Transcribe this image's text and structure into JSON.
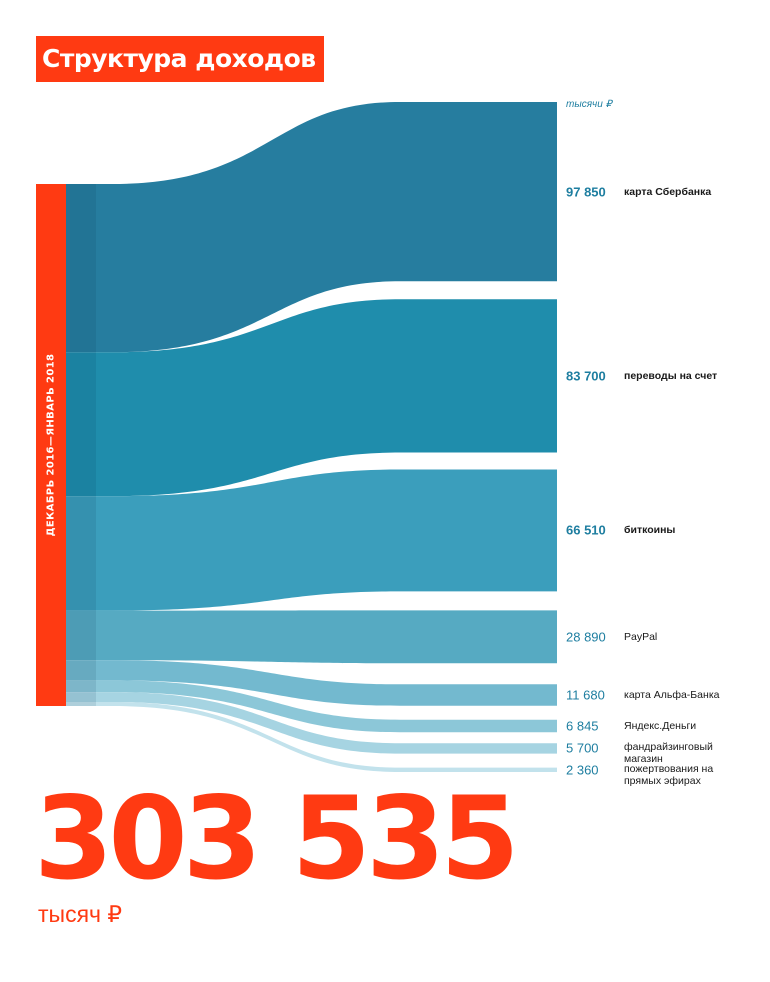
{
  "title": "Структура доходов",
  "period": "ДЕКАБРЬ 2016—ЯНВАРЬ 2018",
  "unit": "тысячи ₽",
  "total": {
    "value": "303 535",
    "unit": "тысяч ₽"
  },
  "colors": {
    "accent": "#ff3a12",
    "value_text": "#1e7ea0"
  },
  "chart_data": {
    "type": "sankey",
    "source": "ДЕКАБРЬ 2016—ЯНВАРЬ 2018",
    "unit": "тысячи ₽",
    "total": 303535,
    "flows": [
      {
        "value": 97850,
        "value_label": "97 850",
        "label": "карта Сбербанка",
        "emphasis": true,
        "color": "#267d9f"
      },
      {
        "value": 83700,
        "value_label": "83 700",
        "label": "переводы на счет",
        "emphasis": true,
        "color": "#1f8dac"
      },
      {
        "value": 66510,
        "value_label": "66 510",
        "label": "биткоины",
        "emphasis": true,
        "color": "#3b9ebc"
      },
      {
        "value": 28890,
        "value_label": "28 890",
        "label": "PayPal",
        "emphasis": false,
        "color": "#56aac2"
      },
      {
        "value": 11680,
        "value_label": "11 680",
        "label": "карта Альфа-Банка",
        "emphasis": false,
        "color": "#73b9cf"
      },
      {
        "value": 6845,
        "value_label": "6 845",
        "label": "Яндекс.Деньги",
        "emphasis": false,
        "color": "#8cc7d8"
      },
      {
        "value": 5700,
        "value_label": "5 700",
        "label": "фандрайзинговый магазин",
        "emphasis": false,
        "color": "#a6d4e2"
      },
      {
        "value": 2360,
        "value_label": "2 360",
        "label": "пожертвования на прямых эфирах",
        "emphasis": false,
        "color": "#c2e2ec"
      }
    ]
  }
}
